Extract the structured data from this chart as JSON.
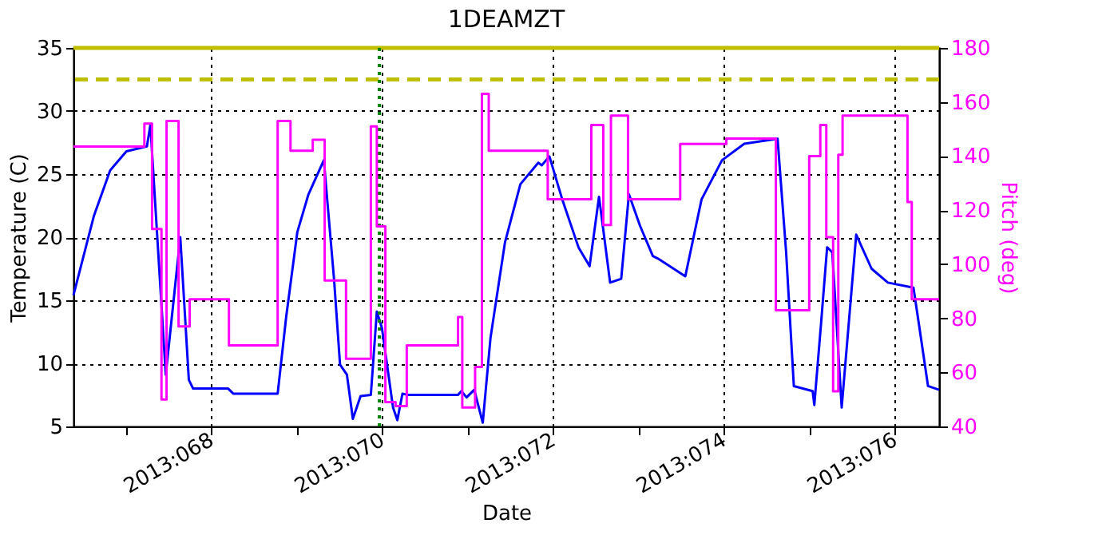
{
  "chart_data": {
    "type": "line",
    "title": "1DEAMZT",
    "xlabel": "Date",
    "ylabel": "Temperature (C)",
    "y2label": "Pitch (deg)",
    "xlim": [
      "2013-03-07T09:22",
      "2013-03-17T12:29"
    ],
    "xticks": [
      {
        "value": "2013-03-08",
        "label": null
      },
      {
        "value": "2013-03-09",
        "label": "2013:068"
      },
      {
        "value": "2013-03-10",
        "label": null
      },
      {
        "value": "2013-03-11",
        "label": "2013:070"
      },
      {
        "value": "2013-03-12",
        "label": null
      },
      {
        "value": "2013-03-13",
        "label": "2013:072"
      },
      {
        "value": "2013-03-14",
        "label": null
      },
      {
        "value": "2013-03-15",
        "label": "2013:074"
      },
      {
        "value": "2013-03-16",
        "label": null
      },
      {
        "value": "2013-03-17",
        "label": "2013:076"
      }
    ],
    "ylim": [
      5,
      35
    ],
    "yticks": [
      5,
      10,
      15,
      20,
      25,
      30,
      35
    ],
    "y2lim": [
      40,
      180
    ],
    "y2ticks": [
      40,
      60,
      80,
      100,
      120,
      140,
      160,
      180
    ],
    "grid": true,
    "ref_lines": [
      {
        "axis": "y",
        "value": 32.5,
        "color": "#bfbf00",
        "line_style": "dashed"
      },
      {
        "axis": "y",
        "value": 35,
        "color": "#bfbf00",
        "line_style": "solid"
      },
      {
        "axis": "x",
        "value": "2013-03-10T23:17",
        "color": "#008000",
        "line_style": "dotted"
      }
    ],
    "series": [
      {
        "color": "#0000ff",
        "x": [
          "2013-03-07T09:22",
          "2013-03-07T15:07",
          "2013-03-07T19:41",
          "2013-03-08T00:14",
          "2013-03-08T06:00",
          "2013-03-08T06:58",
          "2013-03-08T11:17",
          "2013-03-08T15:22",
          "2013-03-08T17:46",
          "2013-03-08T18:58",
          "2013-03-09T04:48",
          "2013-03-09T06:14",
          "2013-03-09T18:43",
          "2013-03-09T21:07",
          "2013-03-10T00:14",
          "2013-03-10T03:22",
          "2013-03-10T07:41",
          "2013-03-10T10:34",
          "2013-03-10T12:14",
          "2013-03-10T14:10",
          "2013-03-10T15:50",
          "2013-03-10T18:00",
          "2013-03-10T20:53",
          "2013-03-10T22:34",
          "2013-03-11T00:00",
          "2013-03-11T03:07",
          "2013-03-11T04:19",
          "2013-03-11T05:46",
          "2013-03-11T07:26",
          "2013-03-11T21:22",
          "2013-03-11T22:19",
          "2013-03-11T23:46",
          "2013-03-12T01:55",
          "2013-03-12T04:19",
          "2013-03-12T06:29",
          "2013-03-12T10:34",
          "2013-03-12T14:53",
          "2013-03-12T19:55",
          "2013-03-12T20:53",
          "2013-03-12T23:02",
          "2013-03-13T02:38",
          "2013-03-13T07:12",
          "2013-03-13T10:19",
          "2013-03-13T12:58",
          "2013-03-13T16:05",
          "2013-03-13T19:12",
          "2013-03-13T21:22",
          "2013-03-14T00:29",
          "2013-03-14T04:05",
          "2013-03-14T05:31",
          "2013-03-14T13:12",
          "2013-03-14T17:46",
          "2013-03-14T23:31",
          "2013-03-15T05:46",
          "2013-03-15T15:07",
          "2013-03-15T17:31",
          "2013-03-15T19:41",
          "2013-03-16T00:58",
          "2013-03-16T01:26",
          "2013-03-16T03:22",
          "2013-03-16T05:02",
          "2013-03-16T06:29",
          "2013-03-16T09:07",
          "2013-03-16T13:12",
          "2013-03-16T17:31",
          "2013-03-16T22:05",
          "2013-03-17T05:17",
          "2013-03-17T06:58",
          "2013-03-17T09:22",
          "2013-03-17T12:29"
        ],
        "values": [
          15.4,
          21.7,
          25.3,
          26.8,
          27.2,
          28.9,
          9.1,
          20.0,
          8.7,
          8.0,
          8.0,
          7.6,
          7.6,
          13.7,
          20.4,
          23.4,
          26.1,
          16.6,
          9.9,
          9.1,
          5.6,
          7.4,
          7.5,
          14.1,
          12.8,
          6.5,
          5.5,
          7.6,
          7.5,
          7.5,
          7.8,
          7.3,
          7.9,
          5.3,
          12.0,
          19.6,
          24.2,
          25.9,
          25.7,
          26.4,
          23.0,
          19.2,
          17.7,
          23.2,
          16.4,
          16.7,
          23.4,
          20.9,
          18.5,
          18.3,
          16.9,
          23.0,
          26.1,
          27.4,
          27.8,
          18.8,
          8.2,
          7.8,
          6.7,
          13.3,
          19.2,
          18.8,
          6.5,
          20.2,
          17.5,
          16.4,
          16.0,
          12.8,
          8.2,
          7.9
        ]
      },
      {
        "type": "step",
        "axis": "y2",
        "color": "#ff00ff",
        "x": [
          "2013-03-07T09:22",
          "2013-03-08T05:17",
          "2013-03-08T07:26",
          "2013-03-08T10:05",
          "2013-03-08T11:31",
          "2013-03-08T14:53",
          "2013-03-08T18:00",
          "2013-03-09T05:02",
          "2013-03-09T18:43",
          "2013-03-09T22:19",
          "2013-03-10T04:34",
          "2013-03-10T07:55",
          "2013-03-10T13:55",
          "2013-03-10T20:53",
          "2013-03-10T22:34",
          "2013-03-11T00:58",
          "2013-03-11T03:50",
          "2013-03-11T06:58",
          "2013-03-11T21:22",
          "2013-03-11T22:34",
          "2013-03-12T02:10",
          "2013-03-12T04:05",
          "2013-03-12T06:00",
          "2013-03-12T22:34",
          "2013-03-13T10:48",
          "2013-03-13T14:10",
          "2013-03-13T16:19",
          "2013-03-13T21:07",
          "2013-03-14T11:46",
          "2013-03-15T00:43",
          "2013-03-15T14:38",
          "2013-03-16T00:00",
          "2013-03-16T03:07",
          "2013-03-16T04:48",
          "2013-03-16T06:43",
          "2013-03-16T08:10",
          "2013-03-16T09:22",
          "2013-03-17T03:36",
          "2013-03-17T04:48",
          "2013-03-17T12:29"
        ],
        "values": [
          143.5,
          152,
          113,
          50,
          153,
          77,
          87,
          70,
          153,
          142,
          146,
          94,
          65,
          151,
          114,
          49,
          47.5,
          70,
          80.5,
          47,
          62,
          163,
          142,
          124,
          151.5,
          114.5,
          155,
          124,
          144.5,
          146.5,
          83,
          140,
          151.5,
          110,
          53,
          140.5,
          155,
          123,
          87,
          87
        ]
      }
    ]
  }
}
